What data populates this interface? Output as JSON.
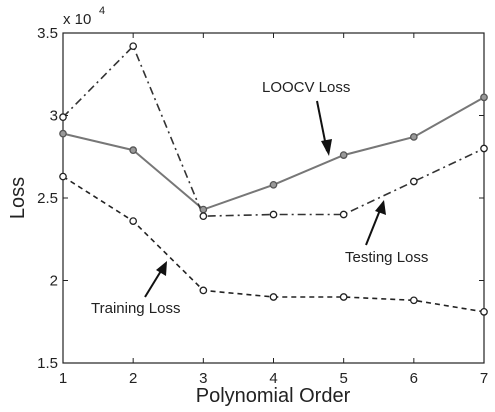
{
  "chart_data": {
    "type": "line",
    "xlabel": "Polynomial Order",
    "ylabel": "Loss",
    "axis_multiplier": {
      "base": "x 10",
      "exponent": "4"
    },
    "x": [
      1,
      2,
      3,
      4,
      5,
      6,
      7
    ],
    "xlim": [
      1,
      7
    ],
    "ylim": [
      1.5,
      3.5
    ],
    "xticks": [
      "1",
      "2",
      "3",
      "4",
      "5",
      "6",
      "7"
    ],
    "yticks": [
      "1.5",
      "2",
      "2.5",
      "3",
      "3.5"
    ],
    "grid": false,
    "series": [
      {
        "name": "LOOCV Loss",
        "line_style": "solid",
        "color": "#777777",
        "marker": "circle",
        "values": [
          2.89,
          2.79,
          2.43,
          2.58,
          2.76,
          2.87,
          3.11
        ]
      },
      {
        "name": "Testing Loss",
        "line_style": "dash-dot",
        "color": "#333333",
        "marker": "open-circle",
        "values": [
          2.99,
          3.42,
          2.39,
          2.4,
          2.4,
          2.6,
          2.8
        ]
      },
      {
        "name": "Training Loss",
        "line_style": "dashed",
        "color": "#222222",
        "marker": "circle",
        "values": [
          2.63,
          2.36,
          1.94,
          1.9,
          1.9,
          1.88,
          1.81
        ]
      }
    ],
    "annotations": [
      {
        "text": "LOOCV Loss",
        "series": "LOOCV Loss"
      },
      {
        "text": "Testing Loss",
        "series": "Testing Loss"
      },
      {
        "text": "Training Loss",
        "series": "Training Loss"
      }
    ]
  }
}
